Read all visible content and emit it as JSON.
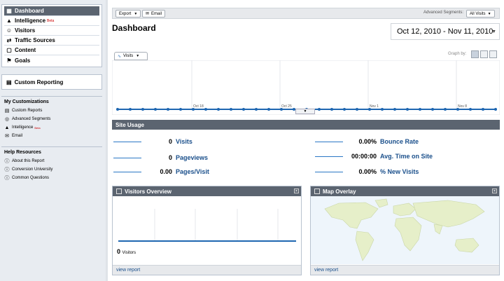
{
  "sidebar": {
    "nav": [
      {
        "label": "Dashboard",
        "icon": "dashboard-icon",
        "active": true
      },
      {
        "label": "Intelligence",
        "icon": "intelligence-icon",
        "beta": "Beta"
      },
      {
        "label": "Visitors",
        "icon": "visitors-icon"
      },
      {
        "label": "Traffic Sources",
        "icon": "traffic-sources-icon"
      },
      {
        "label": "Content",
        "icon": "content-icon"
      },
      {
        "label": "Goals",
        "icon": "goals-icon"
      }
    ],
    "custom_reporting": "Custom Reporting",
    "my_customizations": {
      "title": "My Customizations",
      "items": [
        {
          "label": "Custom Reports",
          "icon": "report-icon"
        },
        {
          "label": "Advanced Segments",
          "icon": "segments-icon"
        },
        {
          "label": "Intelligence",
          "icon": "intelligence-icon",
          "beta": "Beta"
        },
        {
          "label": "Email",
          "icon": "email-icon"
        }
      ]
    },
    "help_resources": {
      "title": "Help Resources",
      "items": [
        {
          "label": "About this Report",
          "icon": "help-icon"
        },
        {
          "label": "Conversion University",
          "icon": "help-icon"
        },
        {
          "label": "Common Questions",
          "icon": "help-icon"
        }
      ]
    }
  },
  "toolbar": {
    "export_label": "Export",
    "email_label": "Email",
    "segments_label": "Advanced Segments:",
    "segments_value": "All Visits"
  },
  "header": {
    "title": "Dashboard",
    "date_range": "Oct 12, 2010 - Nov 11, 2010"
  },
  "graph": {
    "metric_tab": "Visits",
    "graph_by_label": "Graph by:",
    "x_labels": [
      "Oct 18",
      "Oct 25",
      "Nov 1",
      "Nov 8"
    ],
    "line_color": "#1f67b1"
  },
  "site_usage": {
    "title": "Site Usage",
    "metrics": [
      {
        "value": "0",
        "label": "Visits"
      },
      {
        "value": "0",
        "label": "Pageviews"
      },
      {
        "value": "0.00",
        "label": "Pages/Visit"
      },
      {
        "value": "0.00%",
        "label": "Bounce Rate"
      },
      {
        "value": "00:00:00",
        "label": "Avg. Time on Site"
      },
      {
        "value": "0.00%",
        "label": "% New Visits"
      }
    ]
  },
  "visitors_overview": {
    "title": "Visitors Overview",
    "count": "0",
    "count_label": "Visitors",
    "link": "view report"
  },
  "map_overlay": {
    "title": "Map Overlay",
    "link": "view report"
  }
}
